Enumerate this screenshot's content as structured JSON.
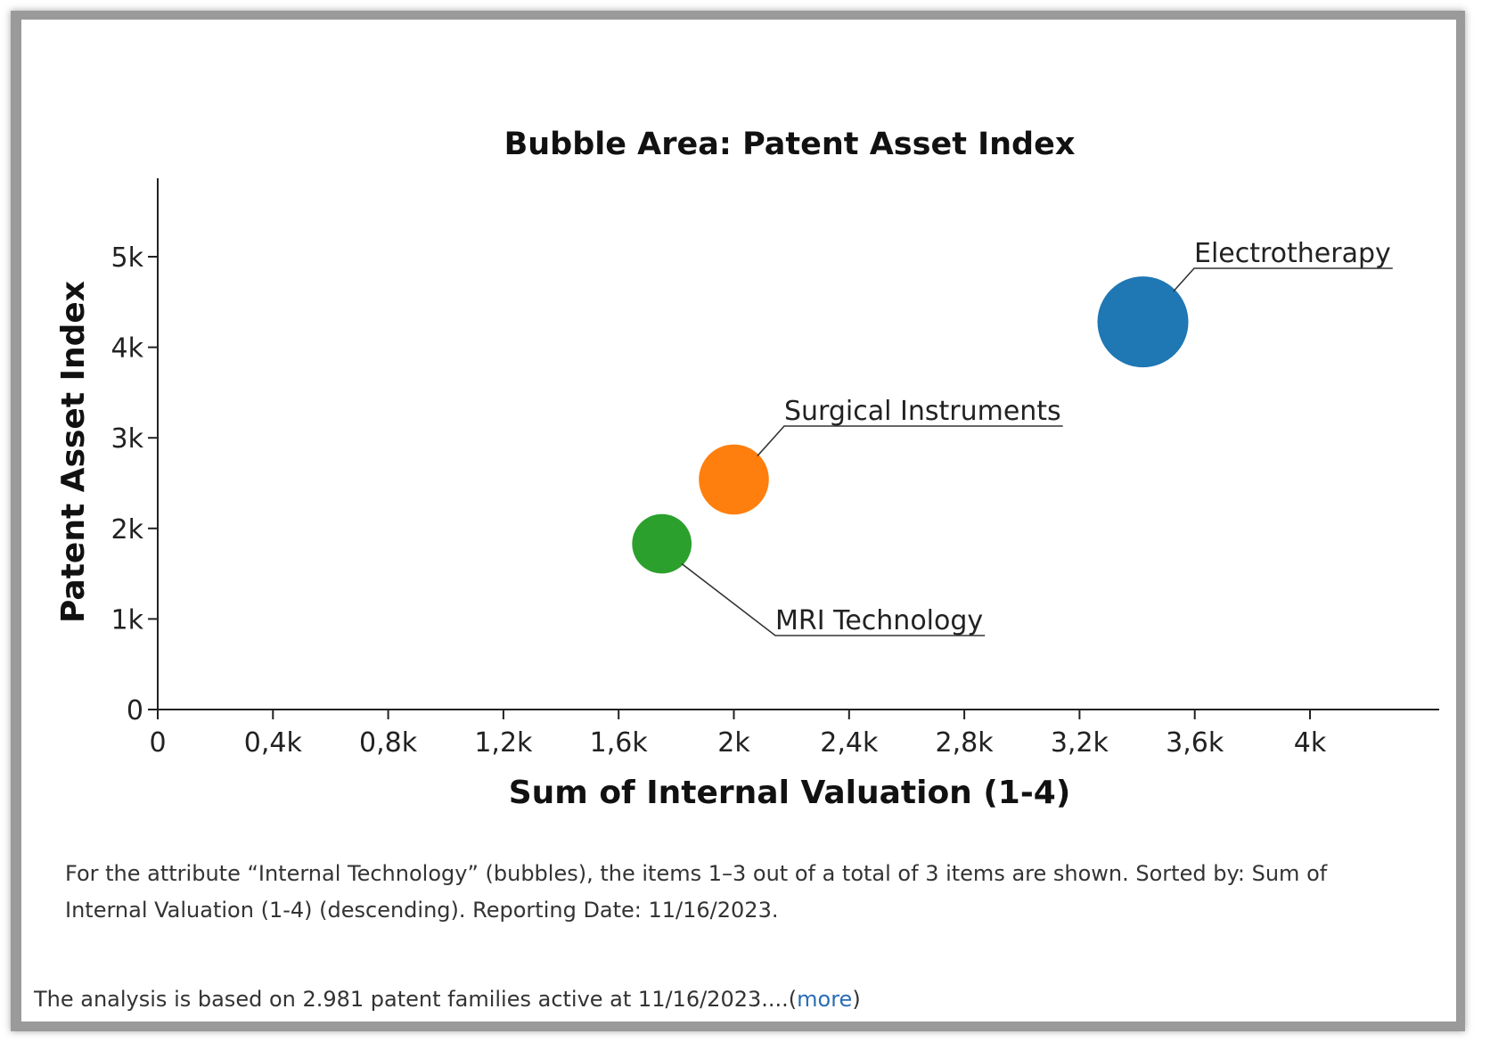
{
  "chart_data": {
    "type": "scatter",
    "title": "Bubble Area:  Patent Asset Index",
    "xlabel": "Sum of Internal Valuation (1-4)",
    "ylabel": "Patent Asset Index",
    "xlim": [
      0,
      4450
    ],
    "ylim": [
      0,
      5850
    ],
    "x_ticks": [
      0,
      400,
      800,
      1200,
      1600,
      2000,
      2400,
      2800,
      3200,
      3600,
      4000
    ],
    "x_tick_labels": [
      "0",
      "0,4k",
      "0,8k",
      "1,2k",
      "1,6k",
      "2k",
      "2,4k",
      "2,8k",
      "3,2k",
      "3,6k",
      "4k"
    ],
    "y_ticks": [
      0,
      1000,
      2000,
      3000,
      4000,
      5000
    ],
    "y_tick_labels": [
      "0",
      "1k",
      "2k",
      "3k",
      "4k",
      "5k"
    ],
    "grid": false,
    "legend": "none",
    "series": [
      {
        "name": "Electrotherapy",
        "x": 3420,
        "y": 4280,
        "size": 4280,
        "color": "#1f77b4"
      },
      {
        "name": "Surgical Instruments",
        "x": 2000,
        "y": 2540,
        "size": 2540,
        "color": "#ff7f0e"
      },
      {
        "name": "MRI Technology",
        "x": 1750,
        "y": 1830,
        "size": 1830,
        "color": "#2ca02c"
      }
    ]
  },
  "footnote": "For the attribute “Internal Technology” (bubbles), the items 1–3 out of a total of 3 items are shown. Sorted by: Sum of Internal Valuation (1-4) (descending). Reporting Date: 11/16/2023.",
  "analysis": {
    "text": "The analysis is based on 2.981 patent families active at 11/16/2023....(",
    "more_label": "more",
    "close_paren": ")"
  }
}
